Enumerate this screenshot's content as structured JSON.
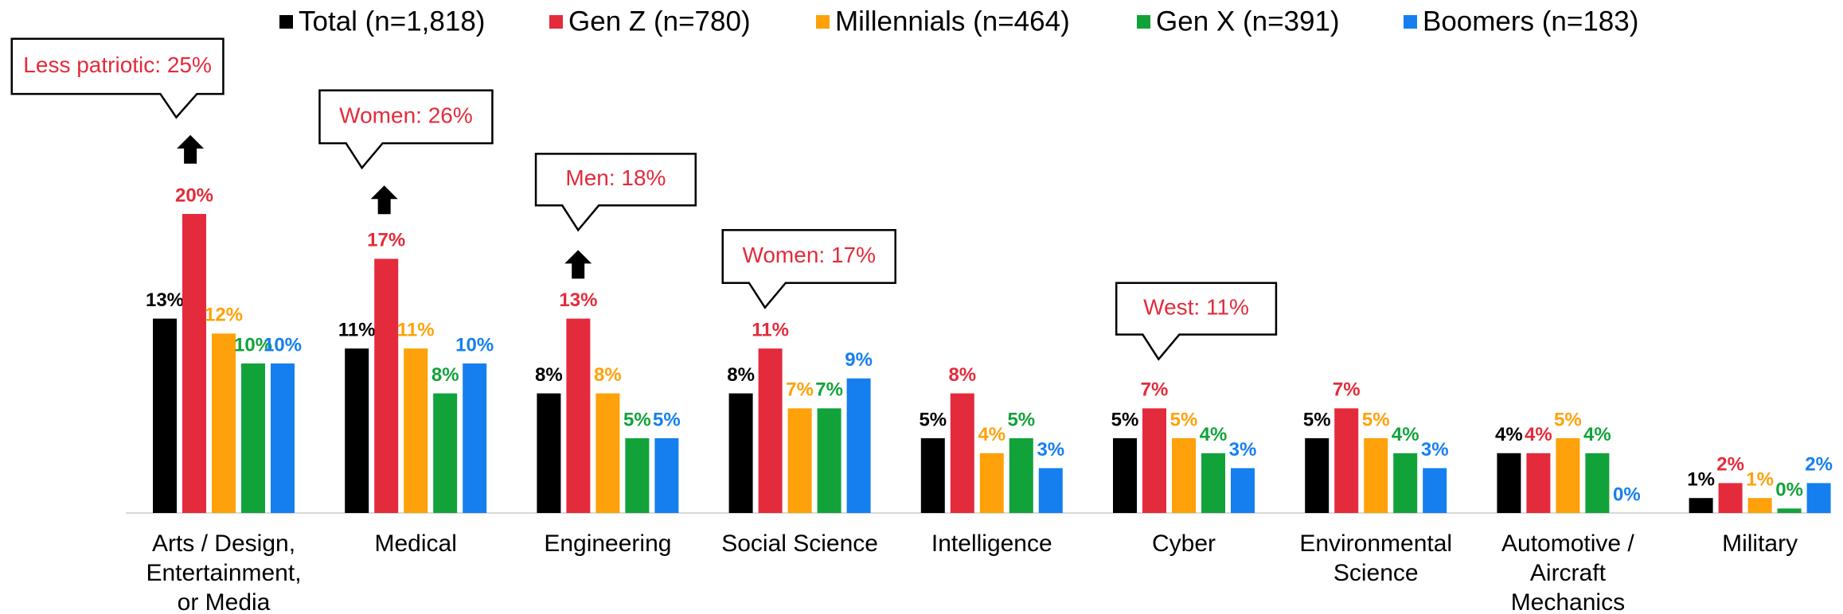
{
  "chart_data": {
    "type": "bar",
    "categories": [
      "Arts / Design,\nEntertainment,\nor Media",
      "Medical",
      "Engineering",
      "Social Science",
      "Intelligence",
      "Cyber",
      "Environmental\nScience",
      "Automotive /\nAircraft\nMechanics",
      "Military"
    ],
    "series": [
      {
        "name": "Total (n=1,818)",
        "color": "#000000",
        "values": [
          13,
          11,
          8,
          8,
          5,
          5,
          5,
          4,
          1
        ],
        "value_labels": [
          "13%",
          "11%",
          "8%",
          "8%",
          "5%",
          "5%",
          "5%",
          "4%",
          "1%"
        ]
      },
      {
        "name": "Gen Z (n=780)",
        "color": "#e32b3b",
        "values": [
          20,
          17,
          13,
          11,
          8,
          7,
          7,
          4,
          2
        ],
        "value_labels": [
          "20%",
          "17%",
          "13%",
          "11%",
          "8%",
          "7%",
          "7%",
          "4%",
          "2%"
        ]
      },
      {
        "name": "Millennials (n=464)",
        "color": "#ffa10a",
        "values": [
          12,
          11,
          8,
          7,
          4,
          5,
          5,
          5,
          1
        ],
        "value_labels": [
          "12%",
          "11%",
          "8%",
          "7%",
          "4%",
          "5%",
          "5%",
          "5%",
          "1%"
        ]
      },
      {
        "name": "Gen X (n=391)",
        "color": "#12a23a",
        "values": [
          10,
          8,
          5,
          7,
          5,
          4,
          4,
          4,
          0.3
        ],
        "value_labels": [
          "10%",
          "8%",
          "5%",
          "7%",
          "5%",
          "4%",
          "4%",
          "4%",
          "0%"
        ]
      },
      {
        "name": "Boomers (n=183)",
        "color": "#157ff0",
        "values": [
          10,
          10,
          5,
          9,
          3,
          3,
          3,
          0,
          2
        ],
        "value_labels": [
          "10%",
          "10%",
          "5%",
          "9%",
          "3%",
          "3%",
          "3%",
          "0%",
          "2%"
        ]
      }
    ],
    "annotations": [
      "Less patriotic: 25%",
      "Women: 26%",
      "Men: 18%",
      "Women: 17%",
      "West: 11%"
    ]
  }
}
